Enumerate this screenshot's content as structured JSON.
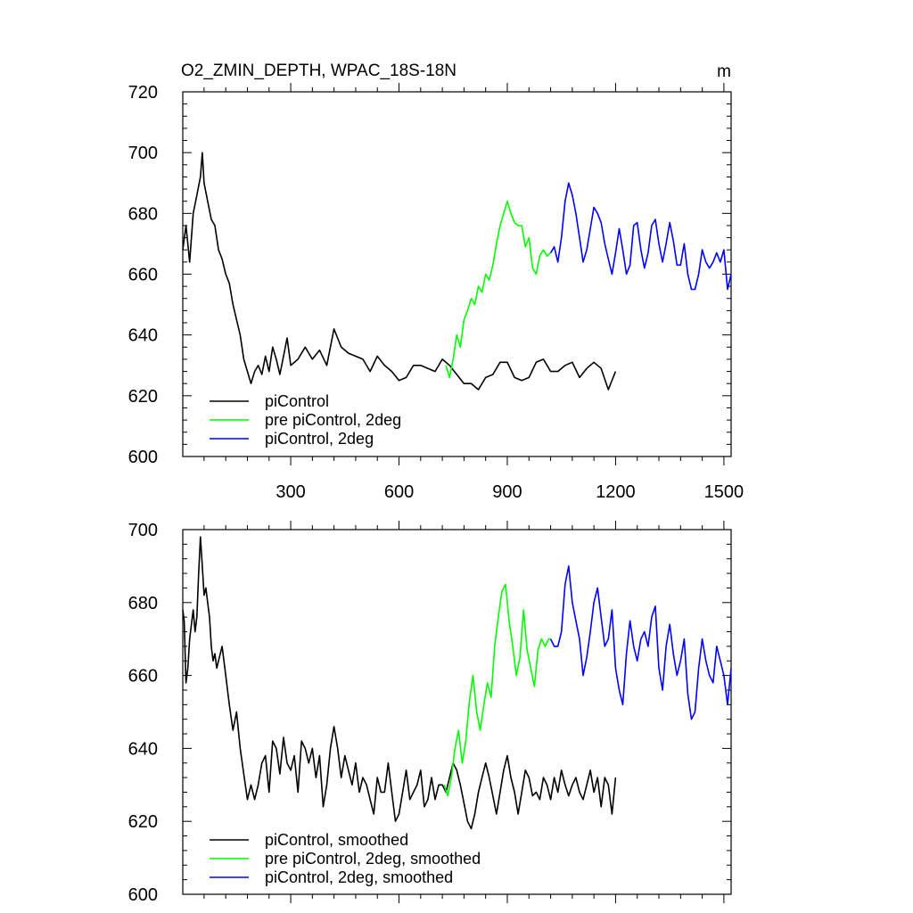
{
  "chart_data": [
    {
      "type": "line",
      "title": "O2_ZMIN_DEPTH, WPAC_18S-18N",
      "units_label": "m",
      "xlabel": "",
      "ylabel": "",
      "xlim": [
        1,
        1520
      ],
      "ylim": [
        600,
        720
      ],
      "x_ticks": [
        300,
        600,
        900,
        1200,
        1500
      ],
      "x_tick_labels": [
        "300",
        "600",
        "900",
        "1200",
        "1500"
      ],
      "y_ticks": [
        600,
        620,
        640,
        660,
        680,
        700,
        720
      ],
      "y_tick_labels": [
        "600",
        "620",
        "640",
        "660",
        "680",
        "700",
        "720"
      ],
      "grid": false,
      "legend_position": "bottom-left",
      "series": [
        {
          "name": "piControl",
          "color": "#000000",
          "x": [
            1,
            10,
            20,
            30,
            40,
            50,
            55,
            60,
            70,
            80,
            90,
            100,
            110,
            120,
            130,
            140,
            150,
            160,
            170,
            180,
            190,
            200,
            210,
            220,
            230,
            240,
            250,
            260,
            270,
            280,
            290,
            300,
            320,
            340,
            360,
            380,
            400,
            420,
            440,
            460,
            480,
            500,
            520,
            540,
            560,
            580,
            600,
            620,
            640,
            660,
            680,
            700,
            720,
            740,
            760,
            780,
            800,
            820,
            840,
            860,
            880,
            900,
            920,
            940,
            960,
            980,
            1000,
            1020,
            1040,
            1060,
            1080,
            1100,
            1120,
            1140,
            1160,
            1180,
            1200
          ],
          "y": [
            668,
            676,
            664,
            680,
            686,
            692,
            700,
            690,
            684,
            678,
            676,
            668,
            665,
            660,
            657,
            650,
            645,
            640,
            632,
            628,
            624,
            628,
            630,
            627,
            633,
            628,
            636,
            632,
            627,
            633,
            639,
            630,
            632,
            636,
            632,
            635,
            630,
            642,
            636,
            634,
            633,
            632,
            628,
            633,
            630,
            628,
            625,
            626,
            630,
            630,
            629,
            628,
            632,
            630,
            627,
            624,
            624,
            622,
            626,
            627,
            631,
            631,
            626,
            625,
            626,
            631,
            632,
            628,
            628,
            630,
            631,
            626,
            629,
            631,
            629,
            622,
            628
          ]
        },
        {
          "name": "pre piControl, 2deg",
          "color": "#00ff00",
          "x": [
            730,
            740,
            750,
            760,
            770,
            780,
            790,
            800,
            810,
            820,
            830,
            840,
            850,
            860,
            870,
            880,
            890,
            900,
            910,
            920,
            930,
            940,
            950,
            960,
            970,
            980,
            990,
            1000,
            1010,
            1020
          ],
          "y": [
            630,
            626,
            632,
            640,
            636,
            645,
            648,
            652,
            650,
            656,
            654,
            660,
            658,
            663,
            670,
            676,
            680,
            684,
            680,
            677,
            676,
            676,
            669,
            672,
            662,
            660,
            666,
            668,
            666,
            667
          ]
        },
        {
          "name": "piControl, 2deg",
          "color": "#0000ff",
          "x": [
            1020,
            1030,
            1040,
            1050,
            1060,
            1070,
            1080,
            1090,
            1100,
            1110,
            1120,
            1130,
            1140,
            1150,
            1160,
            1170,
            1180,
            1190,
            1200,
            1210,
            1220,
            1230,
            1240,
            1250,
            1260,
            1270,
            1280,
            1290,
            1300,
            1310,
            1320,
            1330,
            1340,
            1350,
            1360,
            1370,
            1380,
            1390,
            1400,
            1410,
            1420,
            1430,
            1440,
            1450,
            1460,
            1470,
            1480,
            1490,
            1500,
            1510,
            1520
          ],
          "y": [
            667,
            669,
            664,
            672,
            684,
            690,
            686,
            680,
            672,
            664,
            668,
            675,
            682,
            680,
            677,
            670,
            665,
            660,
            667,
            675,
            668,
            660,
            663,
            676,
            677,
            668,
            662,
            667,
            676,
            678,
            670,
            664,
            670,
            677,
            671,
            663,
            663,
            670,
            660,
            655,
            655,
            660,
            668,
            664,
            662,
            664,
            667,
            664,
            668,
            655,
            660
          ]
        }
      ]
    },
    {
      "type": "line",
      "title": "",
      "xlabel": "",
      "ylabel": "",
      "xlim": [
        1,
        1520
      ],
      "ylim": [
        600,
        700
      ],
      "x_ticks": [
        300,
        600,
        900,
        1200,
        1500
      ],
      "y_ticks": [
        600,
        620,
        640,
        660,
        680,
        700
      ],
      "y_tick_labels": [
        "600",
        "620",
        "640",
        "660",
        "680",
        "700"
      ],
      "grid": false,
      "legend_position": "bottom-left",
      "series": [
        {
          "name": "piControl, smoothed",
          "color": "#000000",
          "x": [
            1,
            5,
            10,
            15,
            20,
            25,
            30,
            35,
            40,
            45,
            50,
            55,
            60,
            65,
            70,
            75,
            80,
            85,
            90,
            95,
            100,
            110,
            120,
            130,
            140,
            150,
            160,
            170,
            180,
            190,
            200,
            210,
            220,
            230,
            240,
            250,
            260,
            270,
            280,
            290,
            300,
            310,
            320,
            330,
            340,
            350,
            360,
            370,
            380,
            390,
            400,
            410,
            420,
            430,
            440,
            450,
            460,
            470,
            480,
            490,
            500,
            510,
            520,
            530,
            540,
            550,
            560,
            570,
            580,
            590,
            600,
            610,
            620,
            630,
            640,
            650,
            660,
            670,
            680,
            690,
            700,
            710,
            720,
            730,
            740,
            750,
            760,
            770,
            780,
            790,
            800,
            810,
            820,
            830,
            840,
            850,
            860,
            870,
            880,
            890,
            900,
            910,
            920,
            930,
            940,
            950,
            960,
            970,
            980,
            990,
            1000,
            1010,
            1020,
            1030,
            1040,
            1050,
            1060,
            1070,
            1080,
            1090,
            1100,
            1110,
            1120,
            1130,
            1140,
            1150,
            1160,
            1170,
            1180,
            1190,
            1200
          ],
          "y": [
            678,
            675,
            658,
            662,
            670,
            674,
            678,
            672,
            676,
            688,
            698,
            690,
            682,
            684,
            680,
            676,
            668,
            664,
            666,
            662,
            664,
            668,
            660,
            652,
            645,
            650,
            640,
            633,
            626,
            630,
            626,
            630,
            636,
            638,
            628,
            642,
            640,
            633,
            643,
            636,
            634,
            638,
            628,
            642,
            640,
            636,
            640,
            632,
            638,
            624,
            630,
            640,
            646,
            640,
            632,
            638,
            634,
            630,
            636,
            628,
            632,
            630,
            626,
            622,
            632,
            628,
            628,
            636,
            628,
            620,
            622,
            628,
            634,
            626,
            628,
            630,
            634,
            624,
            626,
            632,
            626,
            630,
            630,
            628,
            632,
            636,
            634,
            630,
            625,
            620,
            618,
            622,
            628,
            632,
            636,
            632,
            627,
            622,
            628,
            634,
            638,
            632,
            628,
            622,
            628,
            634,
            632,
            627,
            628,
            626,
            632,
            630,
            626,
            632,
            628,
            634,
            630,
            627,
            630,
            632,
            628,
            626,
            630,
            634,
            628,
            632,
            624,
            632,
            630,
            622,
            632
          ]
        },
        {
          "name": "pre piControl, 2deg, smoothed",
          "color": "#00ff00",
          "x": [
            725,
            735,
            745,
            755,
            765,
            775,
            785,
            795,
            805,
            815,
            825,
            835,
            845,
            855,
            865,
            875,
            885,
            895,
            905,
            915,
            925,
            935,
            945,
            955,
            965,
            975,
            985,
            995,
            1005,
            1015,
            1020
          ],
          "y": [
            630,
            627,
            632,
            640,
            645,
            636,
            642,
            653,
            660,
            650,
            645,
            652,
            658,
            654,
            668,
            676,
            683,
            685,
            675,
            668,
            660,
            665,
            678,
            667,
            662,
            657,
            667,
            670,
            668,
            670,
            670
          ]
        },
        {
          "name": "piControl, 2deg, smoothed",
          "color": "#0000ff",
          "x": [
            1020,
            1030,
            1040,
            1050,
            1060,
            1070,
            1080,
            1090,
            1100,
            1110,
            1120,
            1130,
            1140,
            1150,
            1160,
            1170,
            1180,
            1190,
            1200,
            1210,
            1220,
            1230,
            1240,
            1250,
            1260,
            1270,
            1280,
            1290,
            1300,
            1310,
            1320,
            1330,
            1340,
            1350,
            1360,
            1370,
            1380,
            1390,
            1400,
            1410,
            1420,
            1430,
            1440,
            1450,
            1460,
            1470,
            1480,
            1490,
            1500,
            1510,
            1520
          ],
          "y": [
            670,
            668,
            668,
            672,
            685,
            690,
            680,
            675,
            670,
            660,
            665,
            672,
            680,
            684,
            676,
            668,
            670,
            678,
            662,
            656,
            652,
            666,
            675,
            668,
            664,
            670,
            672,
            668,
            676,
            679,
            662,
            656,
            668,
            674,
            666,
            660,
            664,
            670,
            655,
            648,
            650,
            662,
            670,
            664,
            660,
            658,
            668,
            664,
            660,
            652,
            662
          ]
        }
      ]
    }
  ]
}
